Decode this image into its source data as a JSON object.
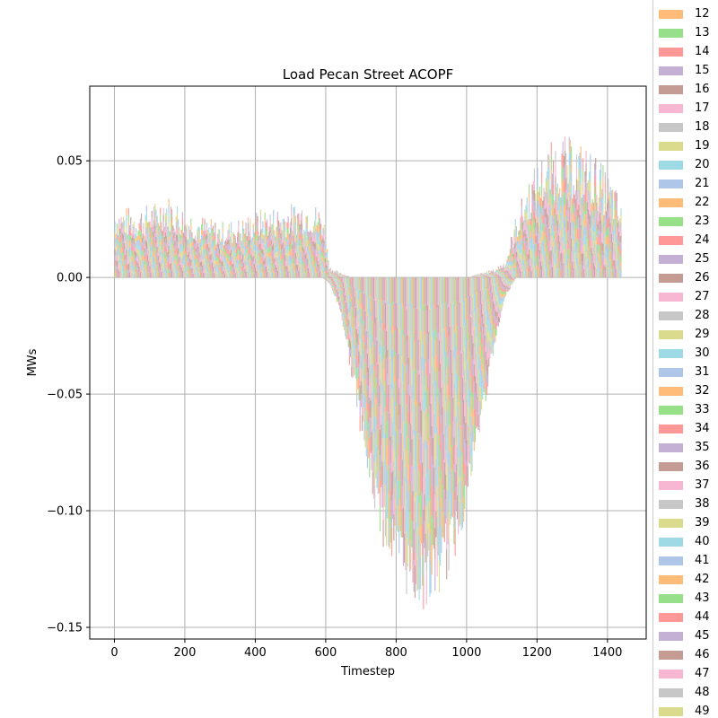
{
  "chart_data": {
    "type": "bar",
    "stacked": true,
    "title": "Load Pecan Street ACOPF",
    "xlabel": "Timestep",
    "ylabel": "MWs",
    "xlim": [
      -70,
      1510
    ],
    "ylim": [
      -0.155,
      0.082
    ],
    "xticks": [
      0,
      200,
      400,
      600,
      800,
      1000,
      1200,
      1400
    ],
    "yticks": [
      -0.15,
      -0.1,
      -0.05,
      0.0,
      0.05
    ],
    "ytick_labels": [
      "−0.15",
      "−0.10",
      "−0.05",
      "0.00",
      "0.05"
    ],
    "grid": true,
    "legend_placement": "right, outside plot",
    "timesteps": 1440,
    "envelope": {
      "x": [
        0,
        60,
        120,
        140,
        200,
        260,
        300,
        360,
        420,
        480,
        540,
        590,
        610,
        640,
        680,
        720,
        760,
        800,
        840,
        880,
        920,
        960,
        1000,
        1040,
        1080,
        1110,
        1140,
        1180,
        1220,
        1260,
        1300,
        1340,
        1380,
        1420,
        1439
      ],
      "top": [
        0.031,
        0.03,
        0.033,
        0.037,
        0.03,
        0.026,
        0.024,
        0.026,
        0.03,
        0.031,
        0.034,
        0.03,
        0.005,
        0.002,
        0.0,
        0.0,
        0.0,
        0.0,
        0.0,
        0.0,
        0.0,
        0.0,
        0.0,
        0.002,
        0.004,
        0.008,
        0.028,
        0.045,
        0.055,
        0.062,
        0.06,
        0.057,
        0.05,
        0.04,
        0.03
      ],
      "bottom": [
        0.0,
        0.0,
        0.0,
        0.0,
        0.0,
        0.0,
        0.0,
        0.0,
        0.0,
        0.0,
        0.0,
        0.0,
        -0.003,
        -0.015,
        -0.05,
        -0.09,
        -0.115,
        -0.13,
        -0.14,
        -0.143,
        -0.138,
        -0.125,
        -0.1,
        -0.065,
        -0.03,
        -0.008,
        0.0,
        0.0,
        0.0,
        0.0,
        0.0,
        0.0,
        0.0,
        0.0,
        0.0
      ]
    },
    "palette": [
      "#ffbb78",
      "#98df8a",
      "#ff9896",
      "#c5b0d5",
      "#c49c94",
      "#f7b6d2",
      "#c7c7c7",
      "#dbdb8d",
      "#9edae5",
      "#aec7e8"
    ],
    "legend": {
      "entries": [
        "12",
        "13",
        "14",
        "15",
        "16",
        "17",
        "18",
        "19",
        "20",
        "21",
        "22",
        "23",
        "24",
        "25",
        "26",
        "27",
        "28",
        "29",
        "30",
        "31",
        "32",
        "33",
        "34",
        "35",
        "36",
        "37",
        "38",
        "39",
        "40",
        "41",
        "42",
        "43",
        "44",
        "45",
        "46",
        "47",
        "48",
        "49"
      ],
      "colors": [
        "#ffbb78",
        "#98df8a",
        "#ff9896",
        "#c5b0d5",
        "#c49c94",
        "#f7b6d2",
        "#c7c7c7",
        "#dbdb8d",
        "#9edae5",
        "#aec7e8",
        "#ffbb78",
        "#98df8a",
        "#ff9896",
        "#c5b0d5",
        "#c49c94",
        "#f7b6d2",
        "#c7c7c7",
        "#dbdb8d",
        "#9edae5",
        "#aec7e8",
        "#ffbb78",
        "#98df8a",
        "#ff9896",
        "#c5b0d5",
        "#c49c94",
        "#f7b6d2",
        "#c7c7c7",
        "#dbdb8d",
        "#9edae5",
        "#aec7e8",
        "#ffbb78",
        "#98df8a",
        "#ff9896",
        "#c5b0d5",
        "#c49c94",
        "#f7b6d2",
        "#c7c7c7",
        "#dbdb8d"
      ]
    }
  }
}
